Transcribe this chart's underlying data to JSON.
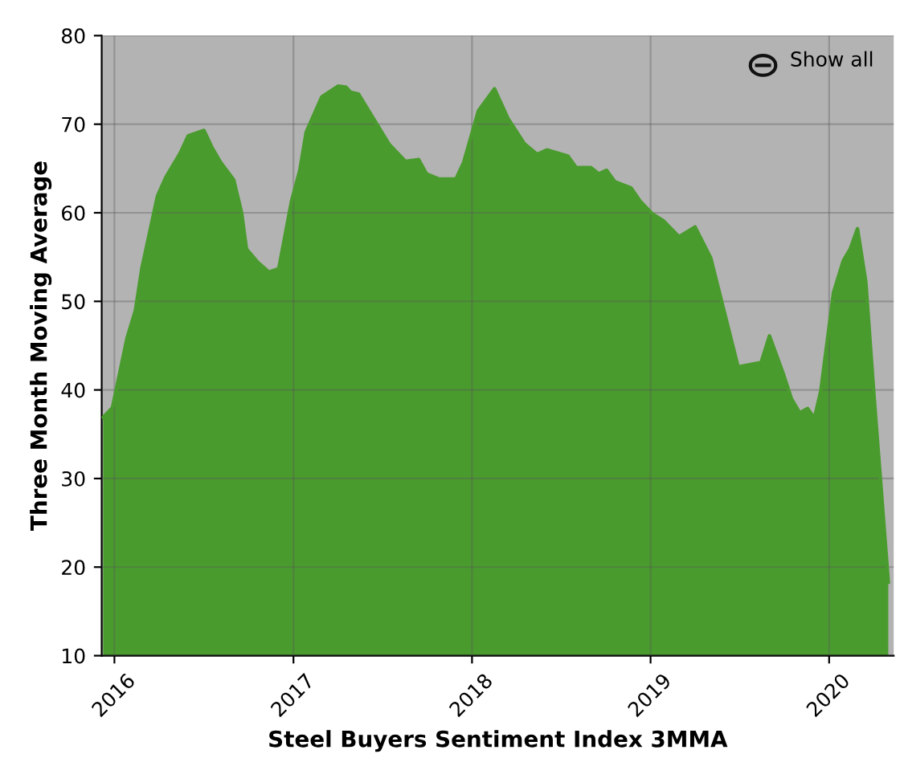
{
  "chart_data": {
    "type": "area",
    "xlabel": "Steel Buyers Sentiment Index 3MMA",
    "ylabel": "Three Month Moving Average",
    "annotations": [
      "Show all"
    ],
    "x": [
      "2015-12-09",
      "2015-12-28",
      "2016-01-27",
      "2016-02-13",
      "2016-02-26",
      "2016-03-29",
      "2016-04-15",
      "2016-05-14",
      "2016-05-31",
      "2016-07-02",
      "2016-07-19",
      "2016-08-05",
      "2016-09-01",
      "2016-09-17",
      "2016-09-27",
      "2016-10-20",
      "2016-11-12",
      "2016-12-02",
      "2016-12-28",
      "2017-01-14",
      "2017-01-27",
      "2017-02-28",
      "2017-04-02",
      "2017-04-18",
      "2017-04-28",
      "2017-05-14",
      "2017-06-16",
      "2017-07-16",
      "2017-08-18",
      "2017-09-14",
      "2017-09-30",
      "2017-10-26",
      "2017-11-29",
      "2017-12-15",
      "2018-01-14",
      "2018-02-16",
      "2018-03-16",
      "2018-04-18",
      "2018-05-14",
      "2018-06-03",
      "2018-07-16",
      "2018-08-02",
      "2018-09-01",
      "2018-09-17",
      "2018-10-03",
      "2018-10-20",
      "2018-11-22",
      "2018-12-11",
      "2019-01-04",
      "2019-01-27",
      "2019-02-28",
      "2019-04-02",
      "2019-05-04",
      "2019-06-29",
      "2019-08-15",
      "2019-09-01",
      "2019-09-30",
      "2019-10-16",
      "2019-11-02",
      "2019-11-18",
      "2019-12-02",
      "2019-12-15",
      "2020-01-10",
      "2020-01-30",
      "2020-02-13",
      "2020-02-28",
      "2020-03-16",
      "2020-04-01",
      "2020-05-01"
    ],
    "series": [
      {
        "color": "#4a9b2e",
        "values": [
          36.9,
          38,
          45.9,
          49,
          53.7,
          61.9,
          64,
          66.7,
          68.7,
          69.3,
          67.3,
          65.7,
          63.7,
          60,
          55.9,
          54.4,
          53.3,
          53.7,
          61.3,
          64.8,
          69.1,
          73.1,
          74.3,
          74.2,
          73.6,
          73.4,
          70.4,
          67.7,
          65.8,
          66,
          64.4,
          63.8,
          63.8,
          65.7,
          71.5,
          74,
          70.6,
          67.8,
          66.6,
          67.1,
          66.4,
          65.1,
          65.1,
          64.4,
          64.8,
          63.5,
          62.8,
          61.3,
          59.9,
          59.1,
          57.3,
          58.4,
          54.9,
          42.6,
          43.1,
          46.1,
          41.7,
          39,
          37.4,
          37.9,
          36.8,
          39.9,
          51,
          54.6,
          55.9,
          58.2,
          52.2,
          39.9,
          18.3
        ]
      }
    ],
    "xlim": [
      "2015-12-06",
      "2020-05-12"
    ],
    "xticks": [
      "2016",
      "2017",
      "2018",
      "2019",
      "2020"
    ],
    "ylim": [
      10,
      80
    ],
    "yticks": [
      10,
      20,
      30,
      40,
      50,
      60,
      70,
      80
    ],
    "grid": true,
    "legend": false
  }
}
